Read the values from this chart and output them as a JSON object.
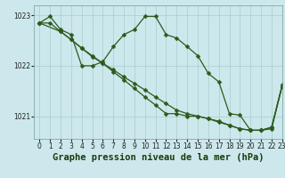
{
  "title": "Graphe pression niveau de la mer (hPa)",
  "bg_color": "#cce8ec",
  "grid_color": "#aacccc",
  "line_color": "#2d5a1b",
  "xlim": [
    -0.5,
    23
  ],
  "ylim": [
    1020.55,
    1023.2
  ],
  "yticks": [
    1021,
    1022,
    1023
  ],
  "xticks": [
    0,
    1,
    2,
    3,
    4,
    5,
    6,
    7,
    8,
    9,
    10,
    11,
    12,
    13,
    14,
    15,
    16,
    17,
    18,
    19,
    20,
    21,
    22,
    23
  ],
  "series": [
    {
      "x": [
        0,
        1,
        2,
        3,
        4,
        5,
        6,
        7,
        8,
        9,
        10,
        11,
        12,
        13,
        14,
        15,
        16,
        17,
        18,
        19,
        20,
        21,
        22,
        23
      ],
      "y": [
        1022.85,
        1022.98,
        1022.72,
        1022.62,
        1022.0,
        1022.0,
        1022.08,
        1022.38,
        1022.62,
        1022.72,
        1022.98,
        1022.98,
        1022.62,
        1022.55,
        1022.38,
        1022.2,
        1021.85,
        1021.68,
        1021.05,
        1021.02,
        1020.72,
        1020.72,
        1020.78,
        1021.62
      ]
    },
    {
      "x": [
        0,
        1,
        2,
        3,
        4,
        5,
        6,
        7,
        8,
        9,
        10,
        11,
        12,
        13,
        14,
        15,
        16,
        17,
        18,
        19,
        20,
        21,
        22,
        23
      ],
      "y": [
        1022.85,
        1022.85,
        1022.68,
        1022.52,
        1022.35,
        1022.18,
        1022.05,
        1021.88,
        1021.72,
        1021.55,
        1021.38,
        1021.22,
        1021.05,
        1021.05,
        1021.0,
        1021.0,
        1020.95,
        1020.88,
        1020.82,
        1020.75,
        1020.72,
        1020.72,
        1020.75,
        1021.6
      ]
    },
    {
      "x": [
        0,
        2,
        3,
        4,
        5,
        6,
        7,
        8,
        9,
        10,
        11,
        12,
        13,
        14,
        15,
        16,
        17,
        18,
        19,
        20,
        21,
        22,
        23
      ],
      "y": [
        1022.85,
        1022.68,
        1022.52,
        1022.35,
        1022.2,
        1022.05,
        1021.92,
        1021.78,
        1021.65,
        1021.52,
        1021.38,
        1021.25,
        1021.12,
        1021.05,
        1021.0,
        1020.95,
        1020.9,
        1020.82,
        1020.75,
        1020.72,
        1020.72,
        1020.78,
        1021.6
      ]
    }
  ],
  "marker_size": 2.5,
  "line_width": 0.9,
  "title_fontsize": 7.5,
  "tick_fontsize": 5.5
}
